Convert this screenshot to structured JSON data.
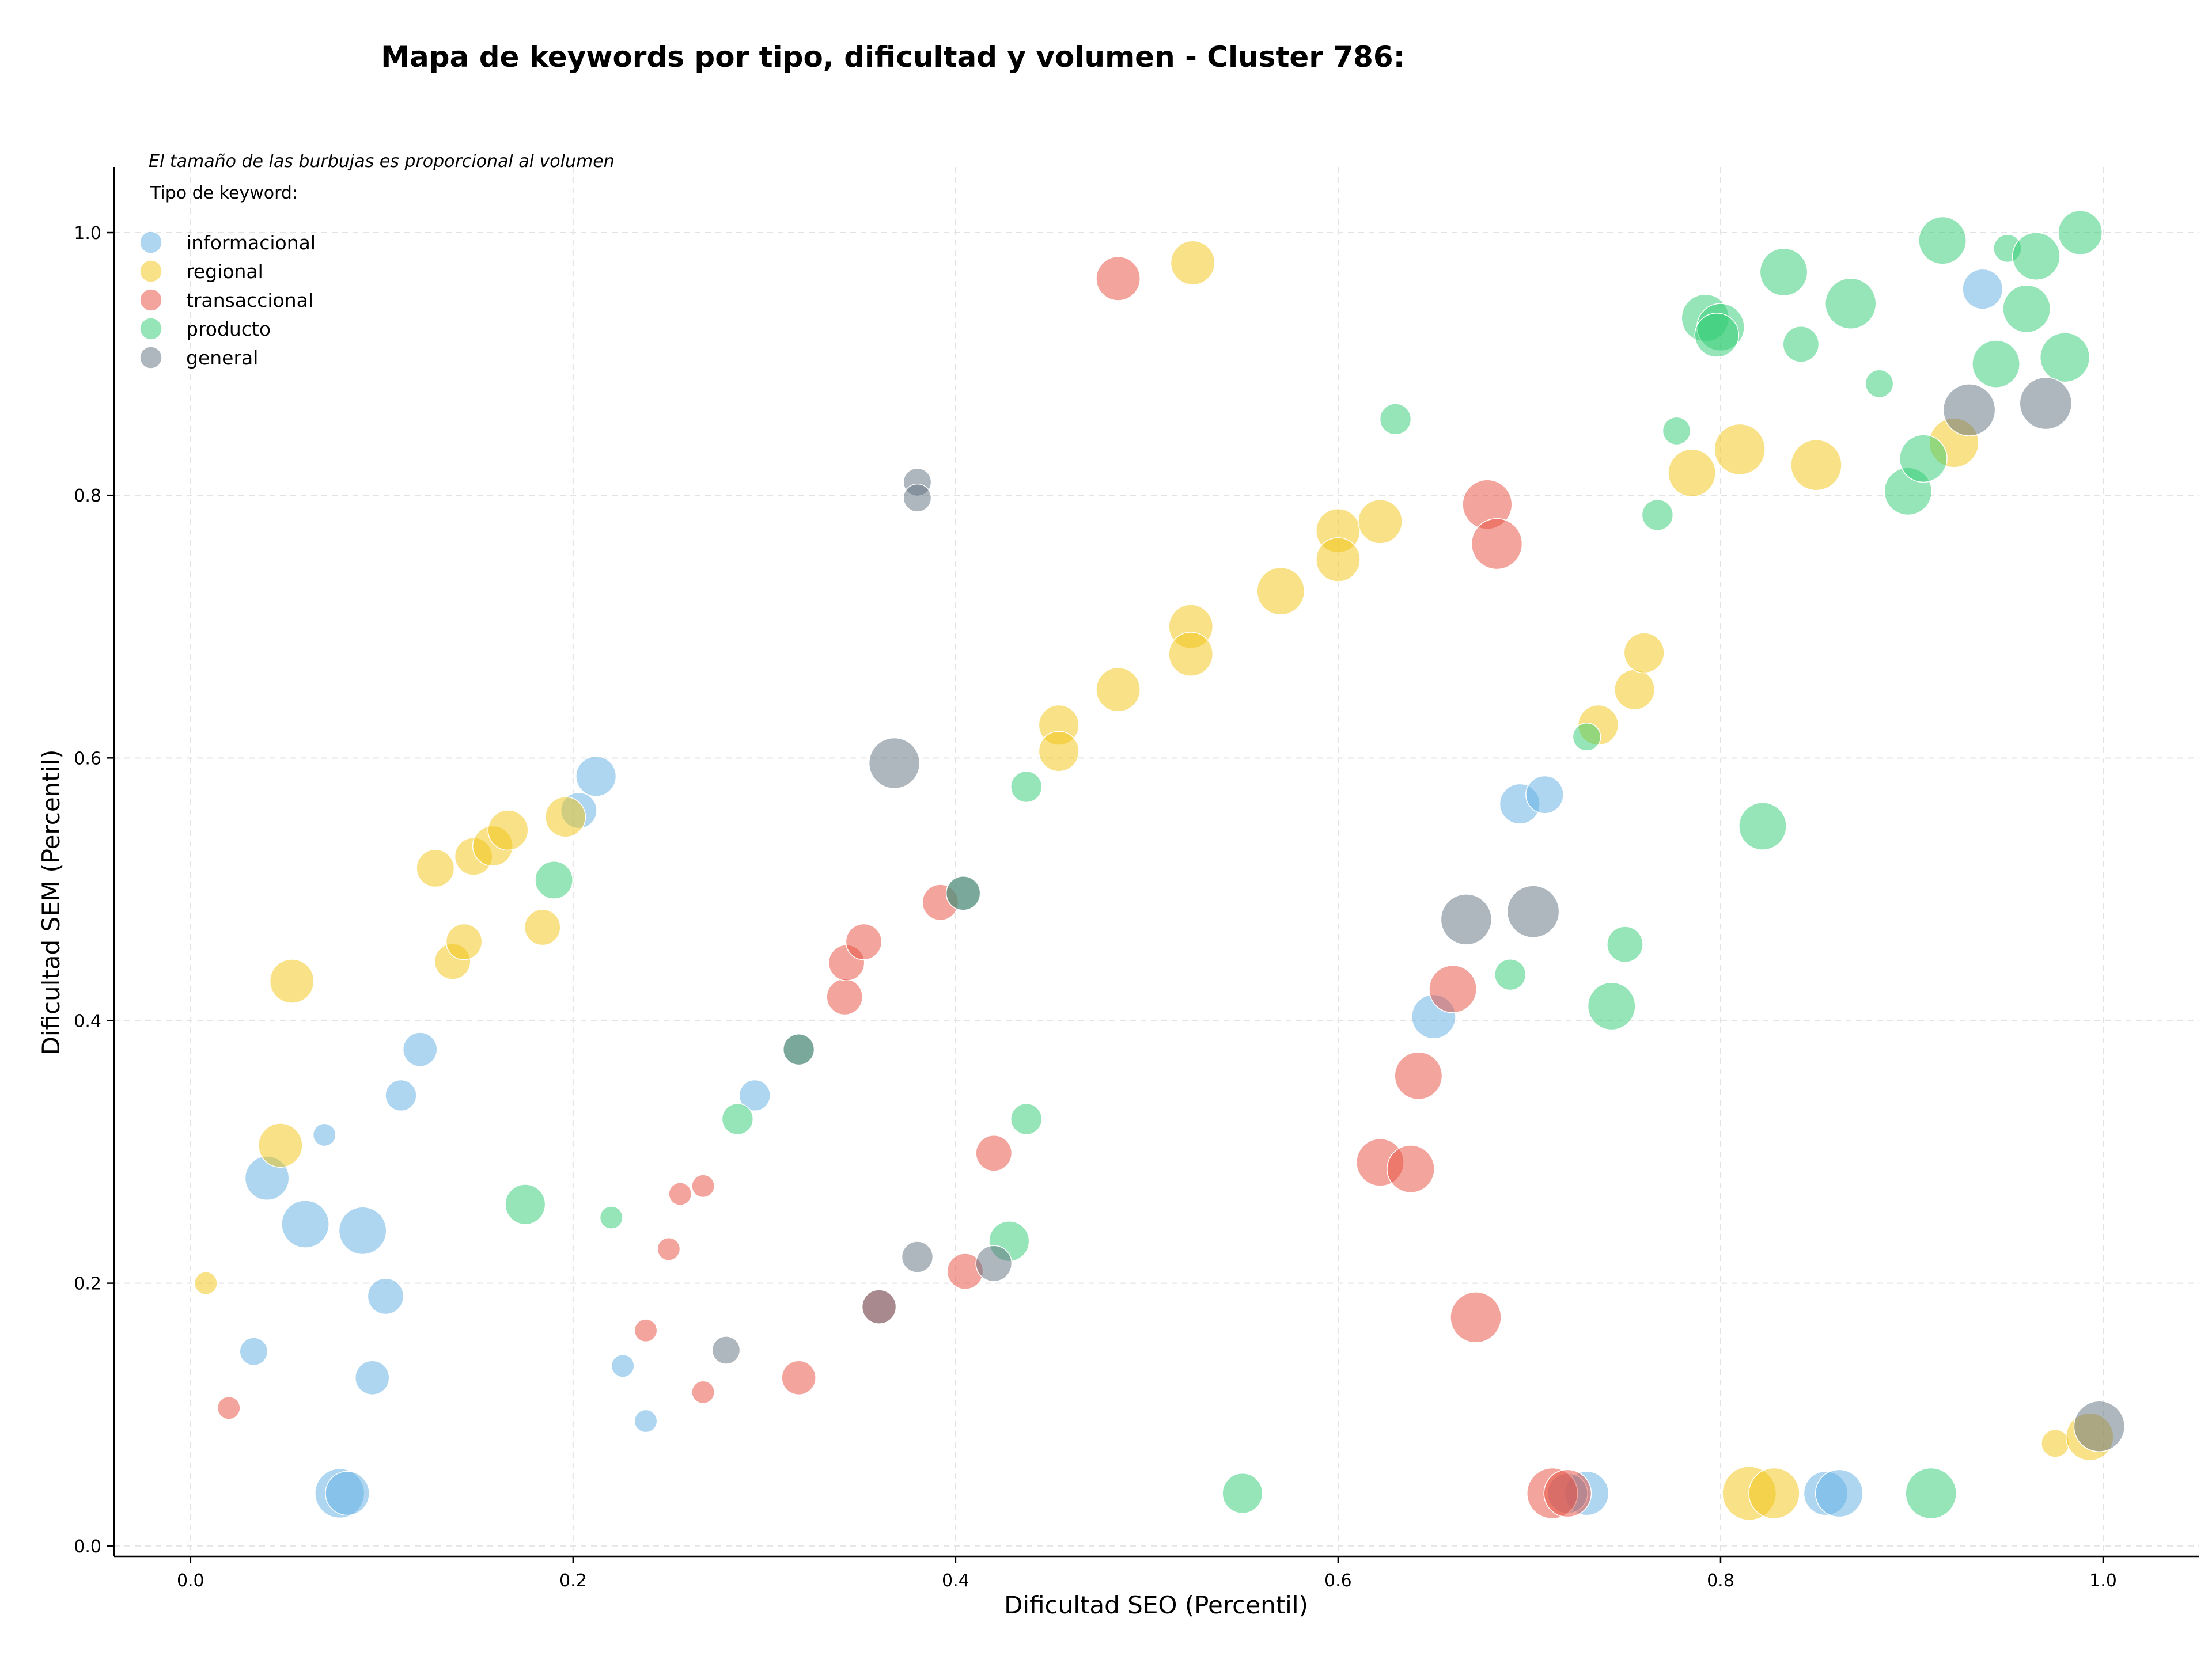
{
  "chart_data": {
    "type": "scatter",
    "title": "Mapa de keywords por tipo, dificultad y volumen - Cluster 786:",
    "xlabel": "Dificultad SEO (Percentil)",
    "ylabel": "Dificultad SEM (Percentil)",
    "note": "El tamaño de las burbujas es proporcional al volumen",
    "legend_title": "Tipo de keyword:",
    "legend_position": "top-left",
    "grid": true,
    "xlim": [
      -0.04,
      1.05
    ],
    "ylim": [
      -0.008,
      1.05
    ],
    "xticks": [
      "0.0",
      "0.2",
      "0.4",
      "0.6",
      "0.8",
      "1.0"
    ],
    "yticks": [
      "0.0",
      "0.2",
      "0.4",
      "0.6",
      "0.8",
      "1.0"
    ],
    "series": [
      {
        "name": "informacional",
        "color": "#5dade2",
        "points": [
          [
            0.04,
            0.28,
            3
          ],
          [
            0.06,
            0.245,
            3.5
          ],
          [
            0.09,
            0.24,
            3.5
          ],
          [
            0.102,
            0.19,
            2
          ],
          [
            0.095,
            0.128,
            1.8
          ],
          [
            0.033,
            0.148,
            1.2
          ],
          [
            0.07,
            0.313,
            0.8
          ],
          [
            0.11,
            0.343,
            1.5
          ],
          [
            0.12,
            0.378,
            1.8
          ],
          [
            0.078,
            0.04,
            3.8
          ],
          [
            0.082,
            0.04,
            3
          ],
          [
            0.203,
            0.56,
            2
          ],
          [
            0.212,
            0.586,
            2.5
          ],
          [
            0.226,
            0.137,
            0.8
          ],
          [
            0.238,
            0.095,
            0.8
          ],
          [
            0.295,
            0.343,
            1.5
          ],
          [
            0.65,
            0.403,
            3
          ],
          [
            0.695,
            0.565,
            2.5
          ],
          [
            0.708,
            0.572,
            2.2
          ],
          [
            0.73,
            0.04,
            3
          ],
          [
            0.72,
            0.04,
            2.5
          ],
          [
            0.855,
            0.04,
            3
          ],
          [
            0.862,
            0.04,
            3.5
          ],
          [
            0.937,
            0.957,
            2.5
          ]
        ]
      },
      {
        "name": "regional",
        "color": "#f1c40f",
        "points": [
          [
            0.008,
            0.2,
            0.8
          ],
          [
            0.047,
            0.305,
            3
          ],
          [
            0.053,
            0.43,
            3
          ],
          [
            0.128,
            0.516,
            2.2
          ],
          [
            0.137,
            0.445,
            2
          ],
          [
            0.143,
            0.46,
            2
          ],
          [
            0.148,
            0.525,
            2.2
          ],
          [
            0.158,
            0.533,
            2.5
          ],
          [
            0.166,
            0.545,
            2.5
          ],
          [
            0.184,
            0.471,
            2
          ],
          [
            0.196,
            0.555,
            2.5
          ],
          [
            0.454,
            0.625,
            2.5
          ],
          [
            0.454,
            0.605,
            2.5
          ],
          [
            0.485,
            0.652,
            3
          ],
          [
            0.523,
            0.7,
            3
          ],
          [
            0.523,
            0.679,
            3
          ],
          [
            0.524,
            0.977,
            3
          ],
          [
            0.57,
            0.727,
            3.5
          ],
          [
            0.6,
            0.773,
            3
          ],
          [
            0.6,
            0.751,
            3
          ],
          [
            0.622,
            0.78,
            3
          ],
          [
            0.736,
            0.625,
            2.5
          ],
          [
            0.755,
            0.652,
            2.5
          ],
          [
            0.76,
            0.68,
            2.5
          ],
          [
            0.785,
            0.817,
            3.5
          ],
          [
            0.81,
            0.835,
            4
          ],
          [
            0.85,
            0.823,
            4
          ],
          [
            0.922,
            0.84,
            3.8
          ],
          [
            0.975,
            0.078,
            1.2
          ],
          [
            0.993,
            0.083,
            3.5
          ],
          [
            0.815,
            0.04,
            4.5
          ],
          [
            0.828,
            0.04,
            4
          ]
        ]
      },
      {
        "name": "transaccional",
        "color": "#e74c3c",
        "points": [
          [
            0.02,
            0.105,
            0.8
          ],
          [
            0.238,
            0.164,
            0.8
          ],
          [
            0.25,
            0.226,
            0.8
          ],
          [
            0.256,
            0.268,
            0.8
          ],
          [
            0.268,
            0.274,
            0.8
          ],
          [
            0.268,
            0.117,
            0.8
          ],
          [
            0.318,
            0.128,
            1.8
          ],
          [
            0.342,
            0.418,
            2
          ],
          [
            0.343,
            0.444,
            2
          ],
          [
            0.352,
            0.46,
            2
          ],
          [
            0.36,
            0.182,
            1.8
          ],
          [
            0.392,
            0.49,
            2
          ],
          [
            0.405,
            0.209,
            2
          ],
          [
            0.42,
            0.299,
            2
          ],
          [
            0.485,
            0.965,
            3
          ],
          [
            0.622,
            0.292,
            3.5
          ],
          [
            0.638,
            0.287,
            3.5
          ],
          [
            0.642,
            0.358,
            3.5
          ],
          [
            0.66,
            0.424,
            3.5
          ],
          [
            0.672,
            0.174,
            4
          ],
          [
            0.678,
            0.793,
            3.8
          ],
          [
            0.683,
            0.763,
            4
          ],
          [
            0.712,
            0.04,
            4
          ],
          [
            0.72,
            0.04,
            3.5
          ]
        ]
      },
      {
        "name": "producto",
        "color": "#2ecc71",
        "points": [
          [
            0.175,
            0.26,
            2.5
          ],
          [
            0.19,
            0.507,
            2.2
          ],
          [
            0.22,
            0.25,
            0.8
          ],
          [
            0.286,
            0.325,
            1.5
          ],
          [
            0.318,
            0.378,
            1.5
          ],
          [
            0.404,
            0.497,
            1.8
          ],
          [
            0.437,
            0.578,
            1.5
          ],
          [
            0.437,
            0.325,
            1.5
          ],
          [
            0.428,
            0.232,
            2.5
          ],
          [
            0.55,
            0.04,
            2.5
          ],
          [
            0.63,
            0.858,
            1.5
          ],
          [
            0.69,
            0.435,
            1.5
          ],
          [
            0.73,
            0.616,
            1.2
          ],
          [
            0.743,
            0.411,
            3.5
          ],
          [
            0.75,
            0.458,
            2
          ],
          [
            0.767,
            0.785,
            1.5
          ],
          [
            0.777,
            0.849,
            1.2
          ],
          [
            0.792,
            0.935,
            3.5
          ],
          [
            0.8,
            0.928,
            3.5
          ],
          [
            0.798,
            0.922,
            3
          ],
          [
            0.822,
            0.548,
            3.5
          ],
          [
            0.833,
            0.97,
            3.5
          ],
          [
            0.842,
            0.915,
            2
          ],
          [
            0.868,
            0.946,
            4
          ],
          [
            0.883,
            0.885,
            1.2
          ],
          [
            0.898,
            0.803,
            3.5
          ],
          [
            0.906,
            0.828,
            3.5
          ],
          [
            0.91,
            0.04,
            4
          ],
          [
            0.916,
            0.994,
            3.5
          ],
          [
            0.944,
            0.9,
            3.5
          ],
          [
            0.95,
            0.988,
            1.2
          ],
          [
            0.96,
            0.942,
            3.5
          ],
          [
            0.965,
            0.982,
            3.5
          ],
          [
            0.98,
            0.905,
            3.8
          ],
          [
            0.988,
            1.0,
            3
          ]
        ]
      },
      {
        "name": "general",
        "color": "#5d6d7e",
        "points": [
          [
            0.28,
            0.149,
            1.2
          ],
          [
            0.36,
            0.182,
            1.8
          ],
          [
            0.368,
            0.596,
            4
          ],
          [
            0.38,
            0.81,
            1.2
          ],
          [
            0.38,
            0.798,
            1.2
          ],
          [
            0.38,
            0.22,
            1.5
          ],
          [
            0.404,
            0.497,
            1.8
          ],
          [
            0.42,
            0.215,
            2
          ],
          [
            0.318,
            0.378,
            1.5
          ],
          [
            0.667,
            0.477,
            4
          ],
          [
            0.702,
            0.483,
            4.2
          ],
          [
            0.93,
            0.865,
            4.2
          ],
          [
            0.97,
            0.87,
            4.2
          ],
          [
            0.998,
            0.091,
            4
          ]
        ]
      }
    ]
  }
}
